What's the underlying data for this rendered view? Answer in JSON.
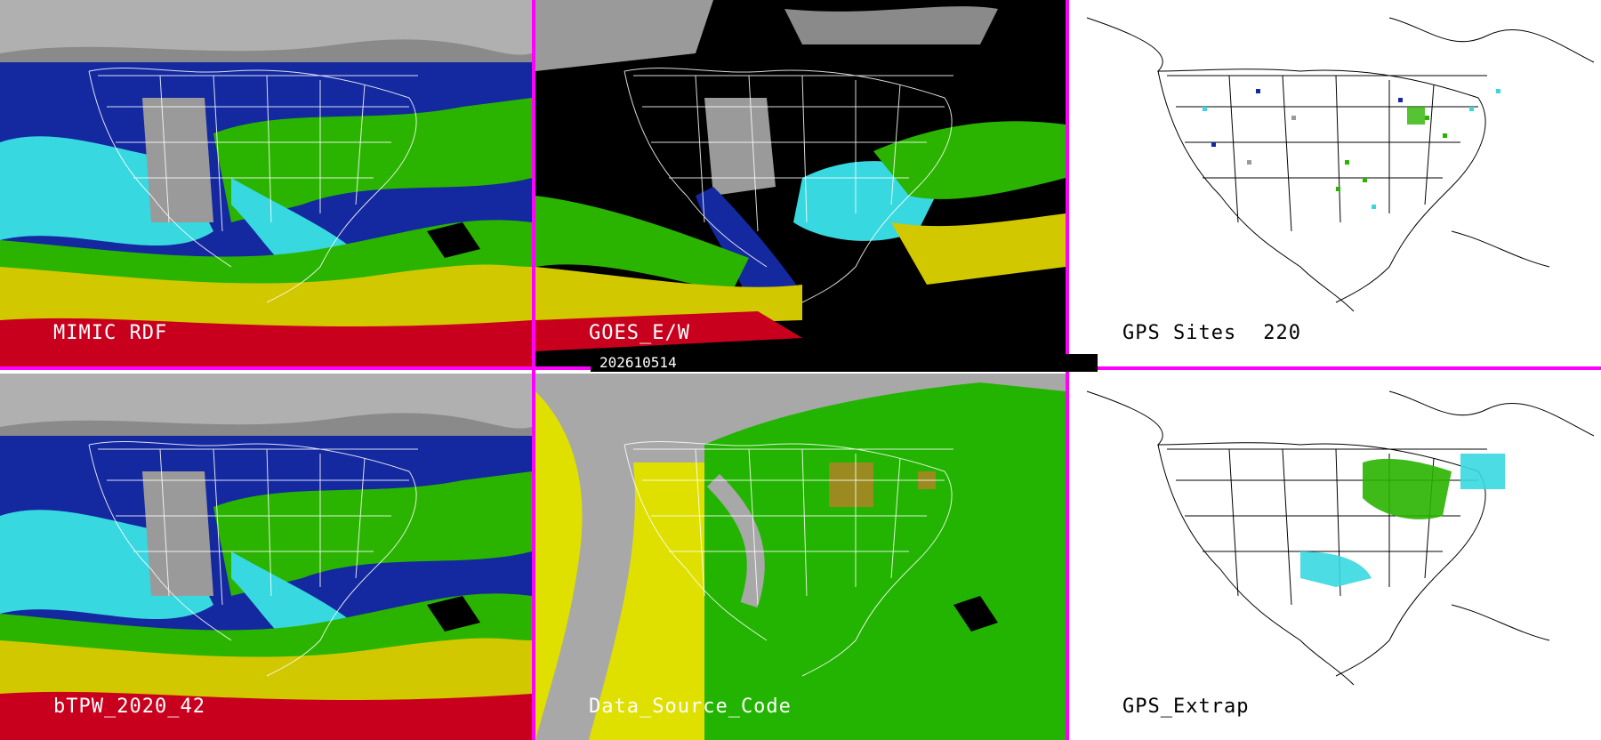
{
  "panels": {
    "top_left": {
      "label": "MIMIC RDF"
    },
    "top_mid": {
      "label": "GOES_E/W"
    },
    "top_right": {
      "label": "GPS Sites",
      "count": "220"
    },
    "bottom_left": {
      "label": "bTPW_2020_42"
    },
    "bottom_mid": {
      "label": "Data_Source_Code"
    },
    "bottom_right": {
      "label": "GPS_Extrap"
    }
  },
  "timestamp": "202610514",
  "colors": {
    "divider": "#ff00ff",
    "tpw_red": "#c8001e",
    "tpw_yellow": "#d2c800",
    "tpw_green": "#2ab400",
    "tpw_cyan": "#38d8e0",
    "tpw_blue": "#1428a0",
    "tpw_gray": "#9a9a9a",
    "code_gray": "#a8a8a8",
    "code_yellow": "#e0e000",
    "code_green": "#22b400",
    "code_olive": "#9a8a20"
  }
}
